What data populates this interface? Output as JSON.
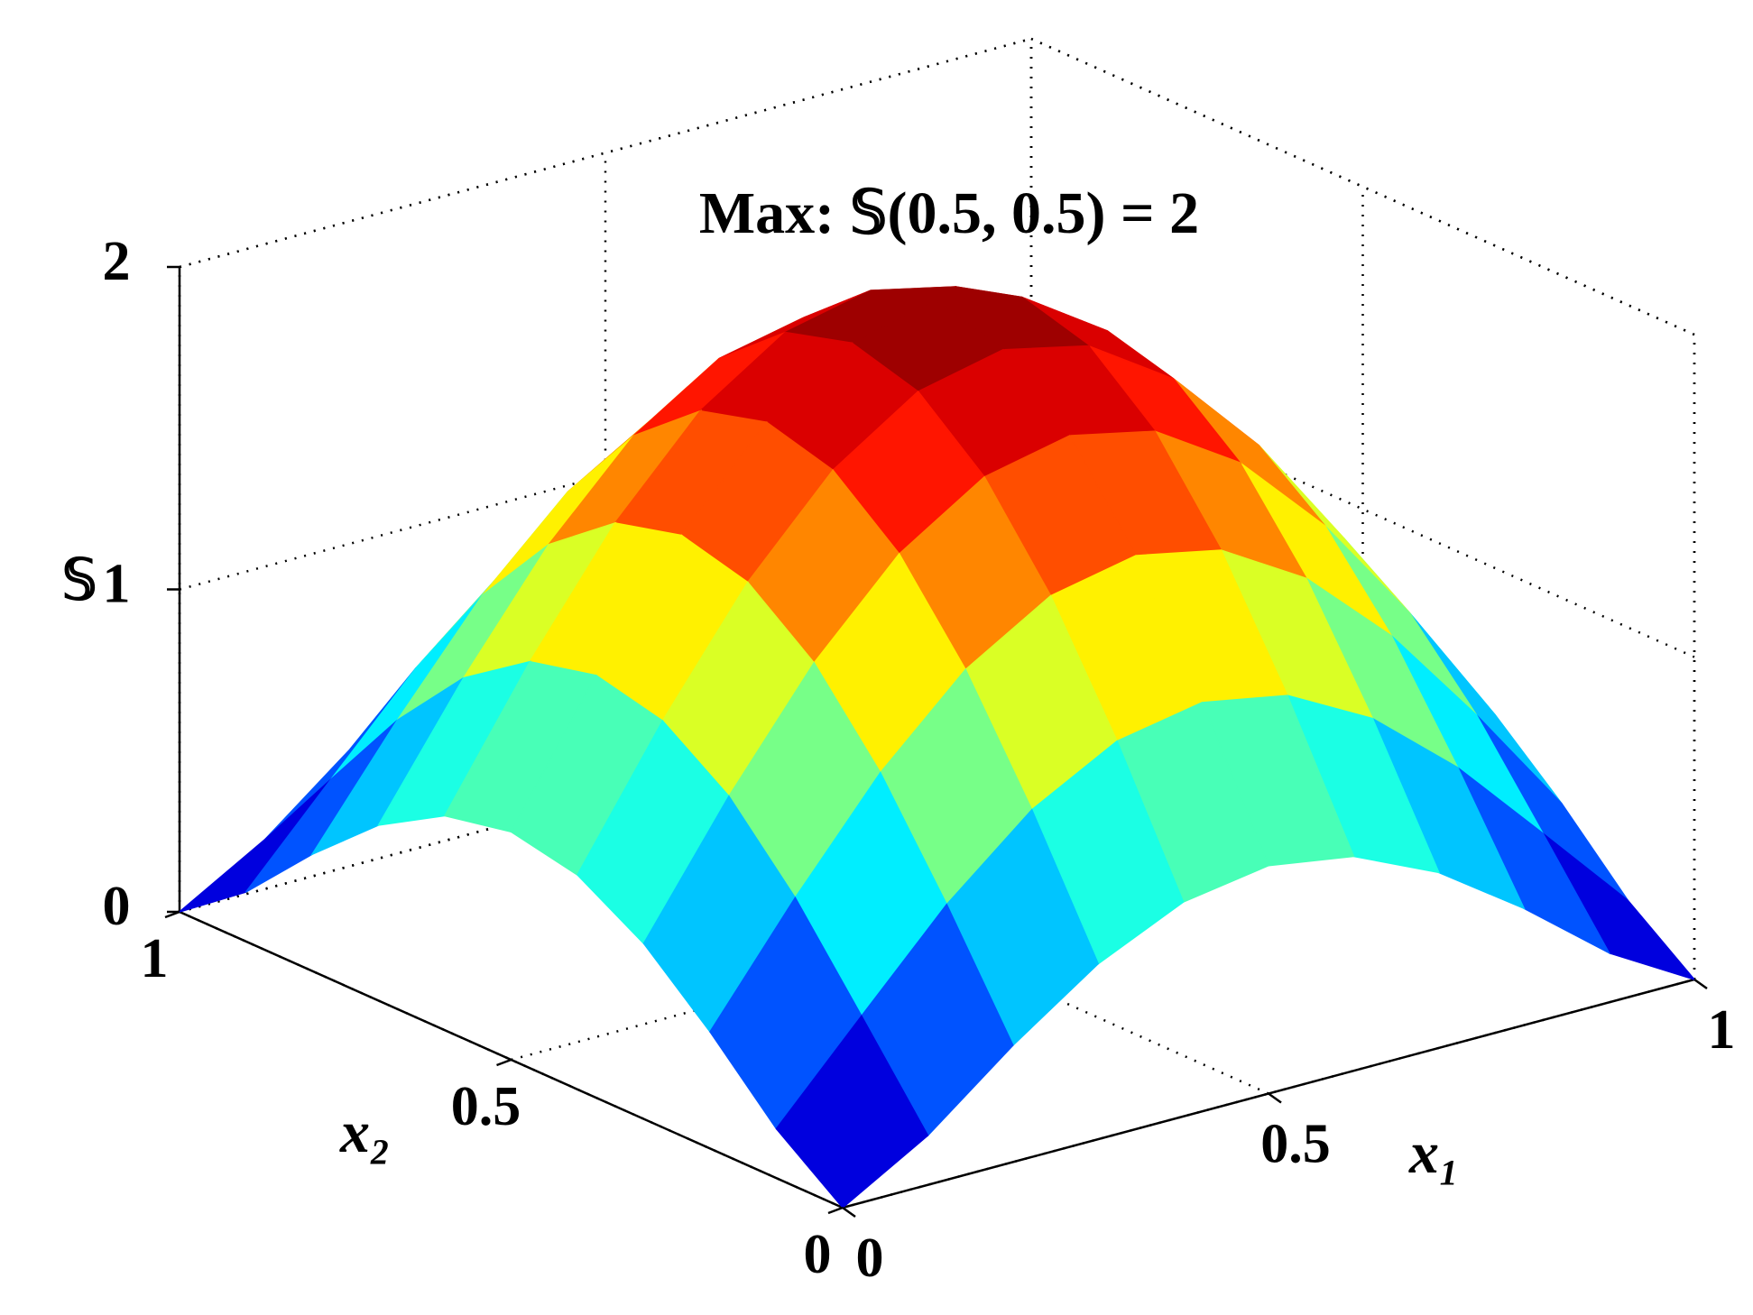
{
  "chart_data": {
    "type": "surface",
    "annotation": "Max: 𝕊(0.5, 0.5) = 2",
    "xlabel": "x₁",
    "ylabel": "x₂",
    "zlabel": "𝕊",
    "colormap": "jet",
    "x": [
      0,
      0.1,
      0.2,
      0.3,
      0.4,
      0.5,
      0.6,
      0.7,
      0.8,
      0.9,
      1
    ],
    "y": [
      0,
      0.1,
      0.2,
      0.3,
      0.4,
      0.5,
      0.6,
      0.7,
      0.8,
      0.9,
      1
    ],
    "z": [
      [
        0,
        0.153,
        0.362,
        0.544,
        0.665,
        0.707,
        0.665,
        0.544,
        0.362,
        0.153,
        0
      ],
      [
        0.153,
        0.432,
        0.707,
        0.93,
        1.072,
        1.121,
        1.072,
        0.93,
        0.707,
        0.432,
        0.153
      ],
      [
        0.362,
        0.707,
        1.024,
        1.273,
        1.431,
        1.485,
        1.431,
        1.273,
        1.024,
        0.707,
        0.362
      ],
      [
        0.544,
        0.93,
        1.273,
        1.54,
        1.708,
        1.765,
        1.708,
        1.54,
        1.273,
        0.93,
        0.544
      ],
      [
        0.665,
        1.072,
        1.431,
        1.708,
        1.881,
        1.94,
        1.881,
        1.708,
        1.431,
        1.072,
        0.665
      ],
      [
        0.707,
        1.121,
        1.485,
        1.765,
        1.94,
        2,
        1.94,
        1.765,
        1.485,
        1.121,
        0.707
      ],
      [
        0.665,
        1.072,
        1.431,
        1.708,
        1.881,
        1.94,
        1.881,
        1.708,
        1.431,
        1.072,
        0.665
      ],
      [
        0.544,
        0.93,
        1.273,
        1.54,
        1.708,
        1.765,
        1.708,
        1.54,
        1.273,
        0.93,
        0.544
      ],
      [
        0.362,
        0.707,
        1.024,
        1.273,
        1.431,
        1.485,
        1.431,
        1.273,
        1.024,
        0.707,
        0.362
      ],
      [
        0.153,
        0.432,
        0.707,
        0.93,
        1.072,
        1.121,
        1.072,
        0.93,
        0.707,
        0.432,
        0.153
      ],
      [
        0,
        0.153,
        0.362,
        0.544,
        0.665,
        0.707,
        0.665,
        0.544,
        0.362,
        0.153,
        0
      ]
    ],
    "xlim": [
      0,
      1
    ],
    "ylim": [
      0,
      1
    ],
    "zlim": [
      0,
      2
    ],
    "xticks": [
      0,
      0.5,
      1
    ],
    "yticks": [
      0,
      0.5,
      1
    ],
    "zticks": [
      0,
      1,
      2
    ],
    "grid": true
  }
}
